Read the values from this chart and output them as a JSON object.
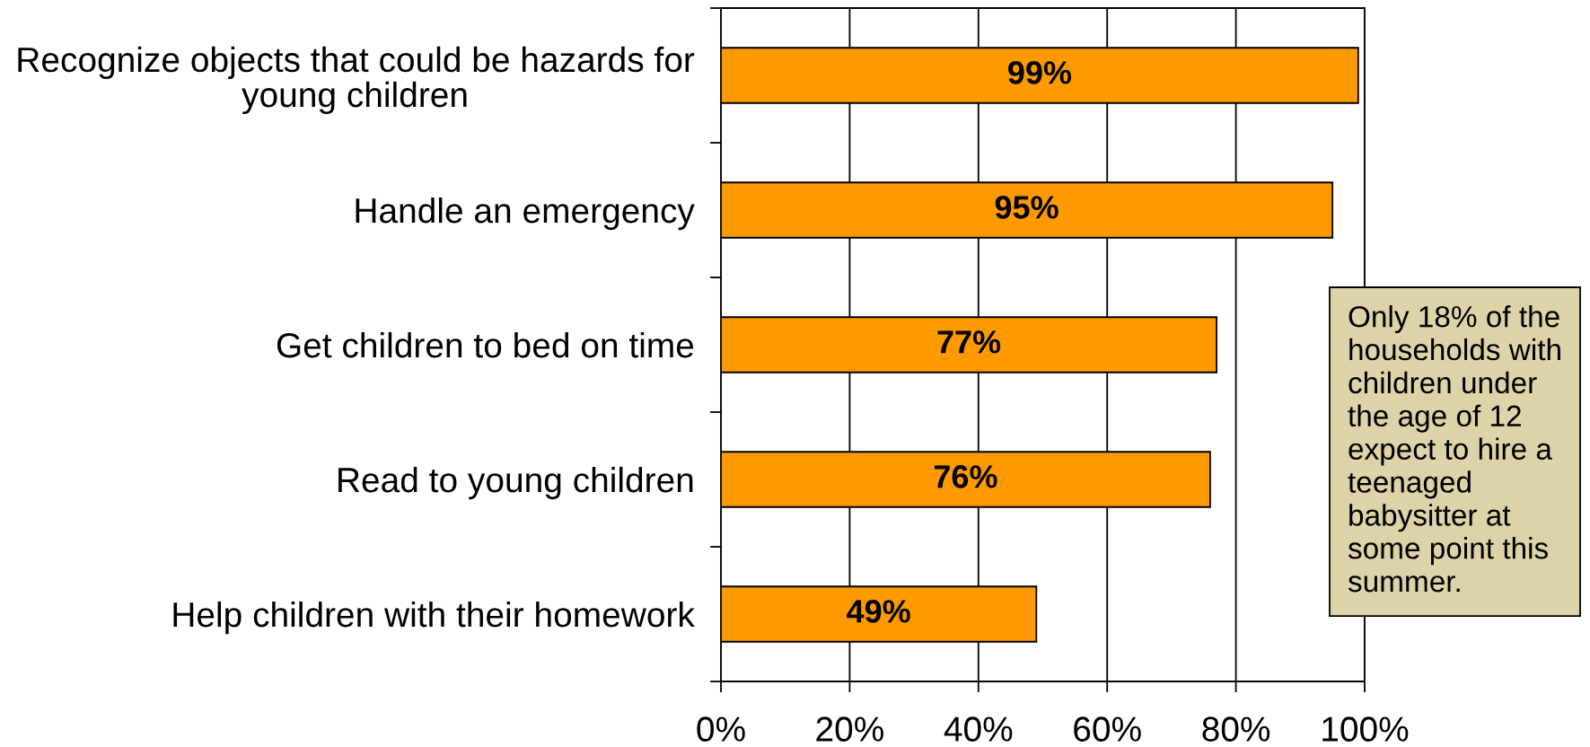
{
  "chart_data": {
    "type": "bar",
    "orientation": "horizontal",
    "categories": [
      "Recognize objects that could be hazards for\nyoung children",
      "Handle an emergency",
      "Get children to bed on time",
      "Read to young children",
      "Help children with their homework"
    ],
    "values": [
      99,
      95,
      77,
      76,
      49
    ],
    "color": "#ff9900",
    "value_labels": [
      "99%",
      "95%",
      "77%",
      "76%",
      "49%"
    ],
    "xlim": [
      0,
      100
    ],
    "xticks": [
      {
        "value": 0,
        "label": "0%"
      },
      {
        "value": 20,
        "label": "20%"
      },
      {
        "value": 40,
        "label": "40%"
      },
      {
        "value": 60,
        "label": "60%"
      },
      {
        "value": 80,
        "label": "80%"
      },
      {
        "value": 100,
        "label": "100%"
      }
    ],
    "grid": "x",
    "annotations": [
      "Only 18% of the\nhouseholds with\nchildren under\nthe age of 12\nexpect to hire a\nteenaged\nbabysitter at\nsome point this\nsummer."
    ]
  }
}
